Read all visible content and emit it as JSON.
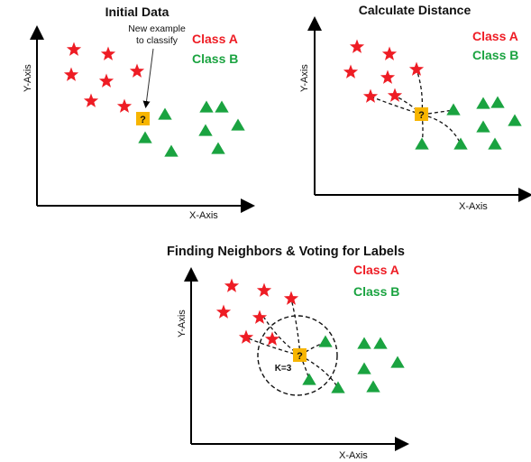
{
  "colors": {
    "class_a": "#ee1c24",
    "class_b": "#1aa340",
    "query": "#f7b500",
    "axis": "#000000"
  },
  "panels": [
    {
      "title": "Initial Data",
      "xlabel": "X-Axis",
      "ylabel": "Y-Axis",
      "legend_a": "Class A",
      "legend_b": "Class B",
      "annotation_line1": "New example",
      "annotation_line2": "to classify",
      "query_symbol": "?"
    },
    {
      "title": "Calculate Distance",
      "xlabel": "X-Axis",
      "ylabel": "Y-Axis",
      "legend_a": "Class A",
      "legend_b": "Class B",
      "query_symbol": "?"
    },
    {
      "title": "Finding Neighbors & Voting for Labels",
      "xlabel": "X-Axis",
      "ylabel": "Y-Axis",
      "legend_a": "Class A",
      "legend_b": "Class B",
      "query_symbol": "?",
      "k_label": "K=3"
    }
  ]
}
